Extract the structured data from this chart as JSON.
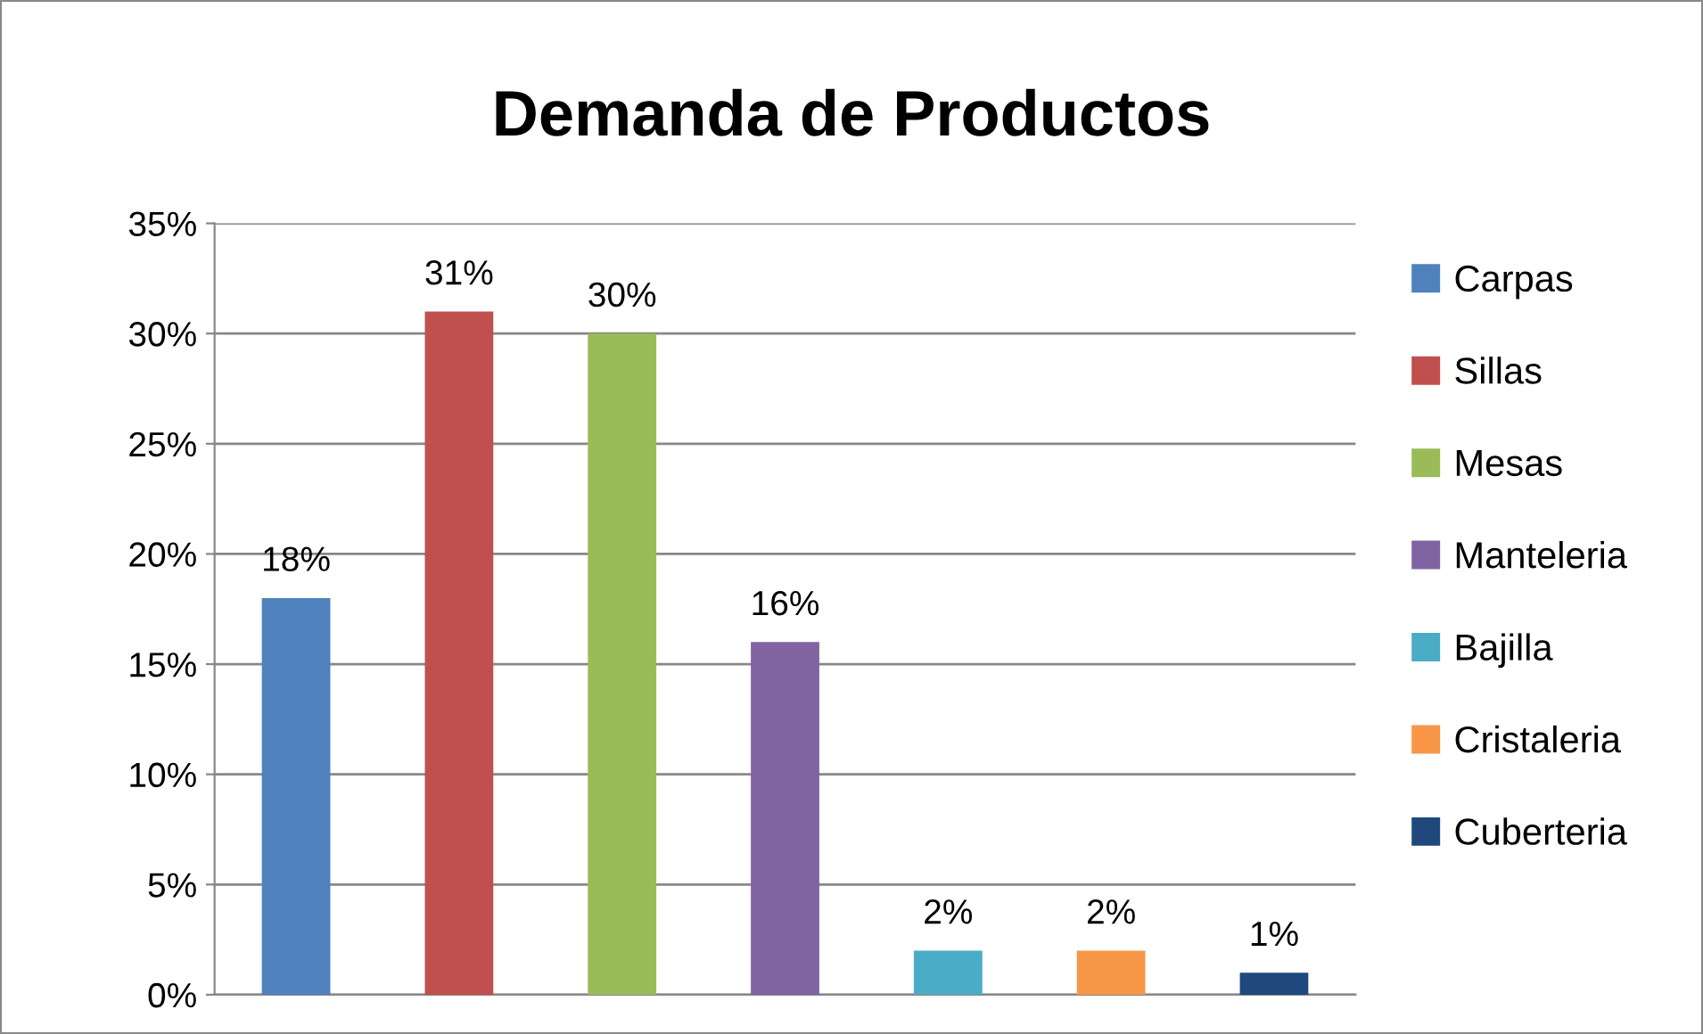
{
  "chart_data": {
    "type": "bar",
    "title": "Demanda de Productos",
    "categories": [
      null
    ],
    "series": [
      {
        "name": "Carpas",
        "color": "#4f81bd",
        "values": [
          18
        ],
        "value_labels": [
          "18%"
        ]
      },
      {
        "name": "Sillas",
        "color": "#c0504d",
        "values": [
          31
        ],
        "value_labels": [
          "31%"
        ]
      },
      {
        "name": "Mesas",
        "color": "#9bbb59",
        "values": [
          30
        ],
        "value_labels": [
          "30%"
        ]
      },
      {
        "name": "Manteleria",
        "color": "#8064a2",
        "values": [
          16
        ],
        "value_labels": [
          "16%"
        ]
      },
      {
        "name": "Bajilla",
        "color": "#4bacc6",
        "values": [
          2
        ],
        "value_labels": [
          "2%"
        ]
      },
      {
        "name": "Cristaleria",
        "color": "#f79646",
        "values": [
          2
        ],
        "value_labels": [
          "2%"
        ]
      },
      {
        "name": "Cuberteria",
        "color": "#1f497d",
        "values": [
          1
        ],
        "value_labels": [
          "1%"
        ]
      }
    ],
    "ylim": [
      0,
      35
    ],
    "yticks": [
      {
        "value": 0,
        "label": "0%"
      },
      {
        "value": 5,
        "label": "5%"
      },
      {
        "value": 10,
        "label": "10%"
      },
      {
        "value": 15,
        "label": "15%"
      },
      {
        "value": 20,
        "label": "20%"
      },
      {
        "value": 25,
        "label": "25%"
      },
      {
        "value": 30,
        "label": "30%"
      },
      {
        "value": 35,
        "label": "35%"
      }
    ],
    "grid": "y",
    "legend": "right",
    "tick_labels": "y"
  }
}
